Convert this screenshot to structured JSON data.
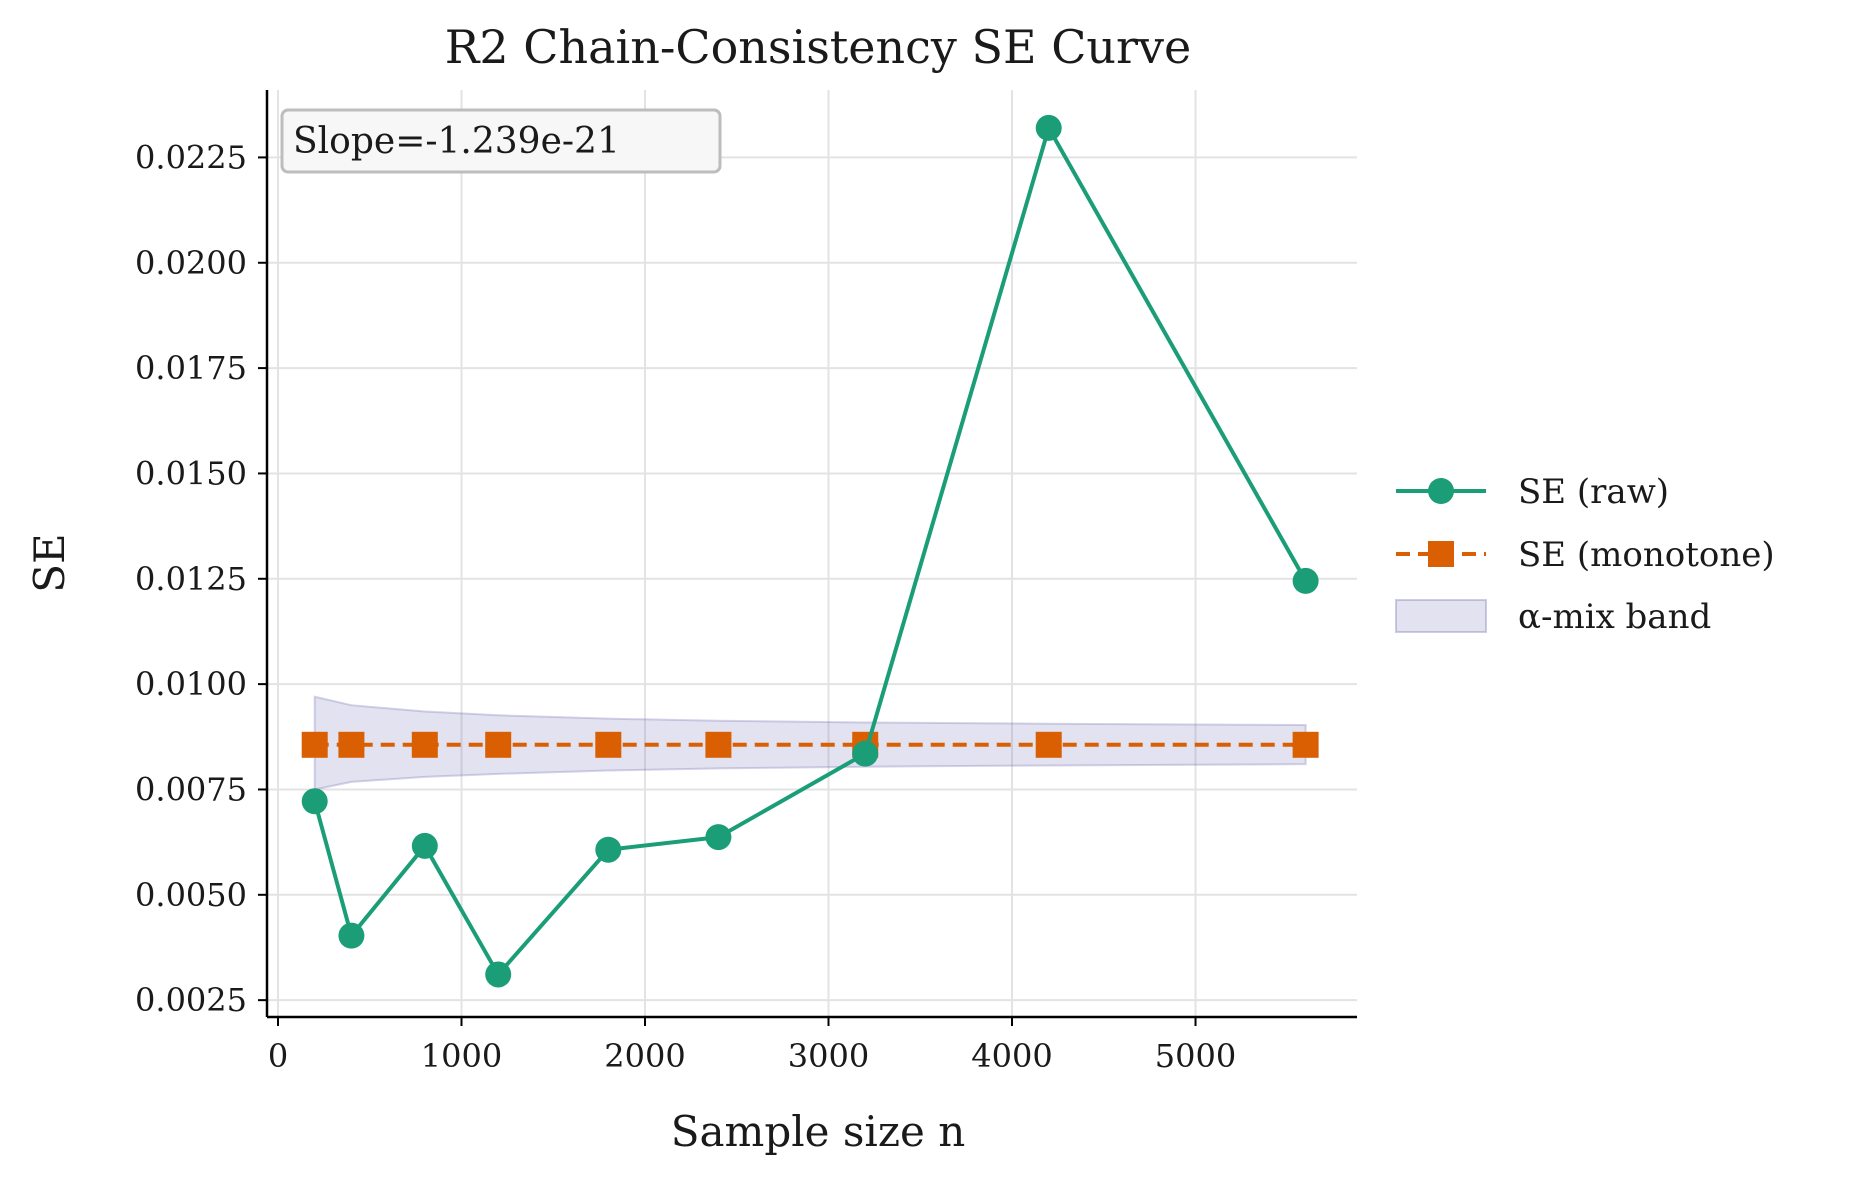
{
  "chart_data": {
    "type": "line",
    "title": "R2 Chain-Consistency SE Curve",
    "xlabel": "Sample size n",
    "ylabel": "SE",
    "xlim": [
      -60,
      5880
    ],
    "ylim": [
      0.0021,
      0.0241
    ],
    "xticks": [
      0,
      1000,
      2000,
      3000,
      4000,
      5000
    ],
    "xtick_labels": [
      "0",
      "1000",
      "2000",
      "3000",
      "4000",
      "5000"
    ],
    "yticks": [
      0.0025,
      0.005,
      0.0075,
      0.01,
      0.0125,
      0.015,
      0.0175,
      0.02,
      0.0225
    ],
    "ytick_labels": [
      "0.0025",
      "0.0050",
      "0.0075",
      "0.0100",
      "0.0125",
      "0.0150",
      "0.0175",
      "0.0200",
      "0.0225"
    ],
    "grid": true,
    "x": [
      200,
      400,
      800,
      1200,
      1800,
      2400,
      3200,
      4200,
      5600
    ],
    "series": [
      {
        "name": "SE (raw)",
        "color": "#1b9e77",
        "marker": "circle",
        "linestyle": "solid",
        "values": [
          0.00722,
          0.00403,
          0.00616,
          0.00311,
          0.00607,
          0.00637,
          0.00835,
          0.0232,
          0.01245
        ]
      },
      {
        "name": "SE (monotone)",
        "color": "#d95f02",
        "marker": "square",
        "linestyle": "dashed",
        "values": [
          0.00856,
          0.00856,
          0.00856,
          0.00856,
          0.00856,
          0.00856,
          0.00856,
          0.00856,
          0.00856
        ]
      }
    ],
    "band": {
      "name": "α-mix band",
      "color": "#7570b3",
      "x": [
        200,
        400,
        800,
        1200,
        1800,
        2400,
        3200,
        4200,
        5600
      ],
      "lower": [
        0.0075,
        0.00768,
        0.0078,
        0.00787,
        0.00795,
        0.008,
        0.00804,
        0.00807,
        0.0081
      ],
      "upper": [
        0.0097,
        0.0095,
        0.00935,
        0.00926,
        0.00918,
        0.00913,
        0.00909,
        0.00906,
        0.00903
      ]
    },
    "annotation": "Slope=-1.239e-21",
    "legend_position": "center-right-outside"
  }
}
